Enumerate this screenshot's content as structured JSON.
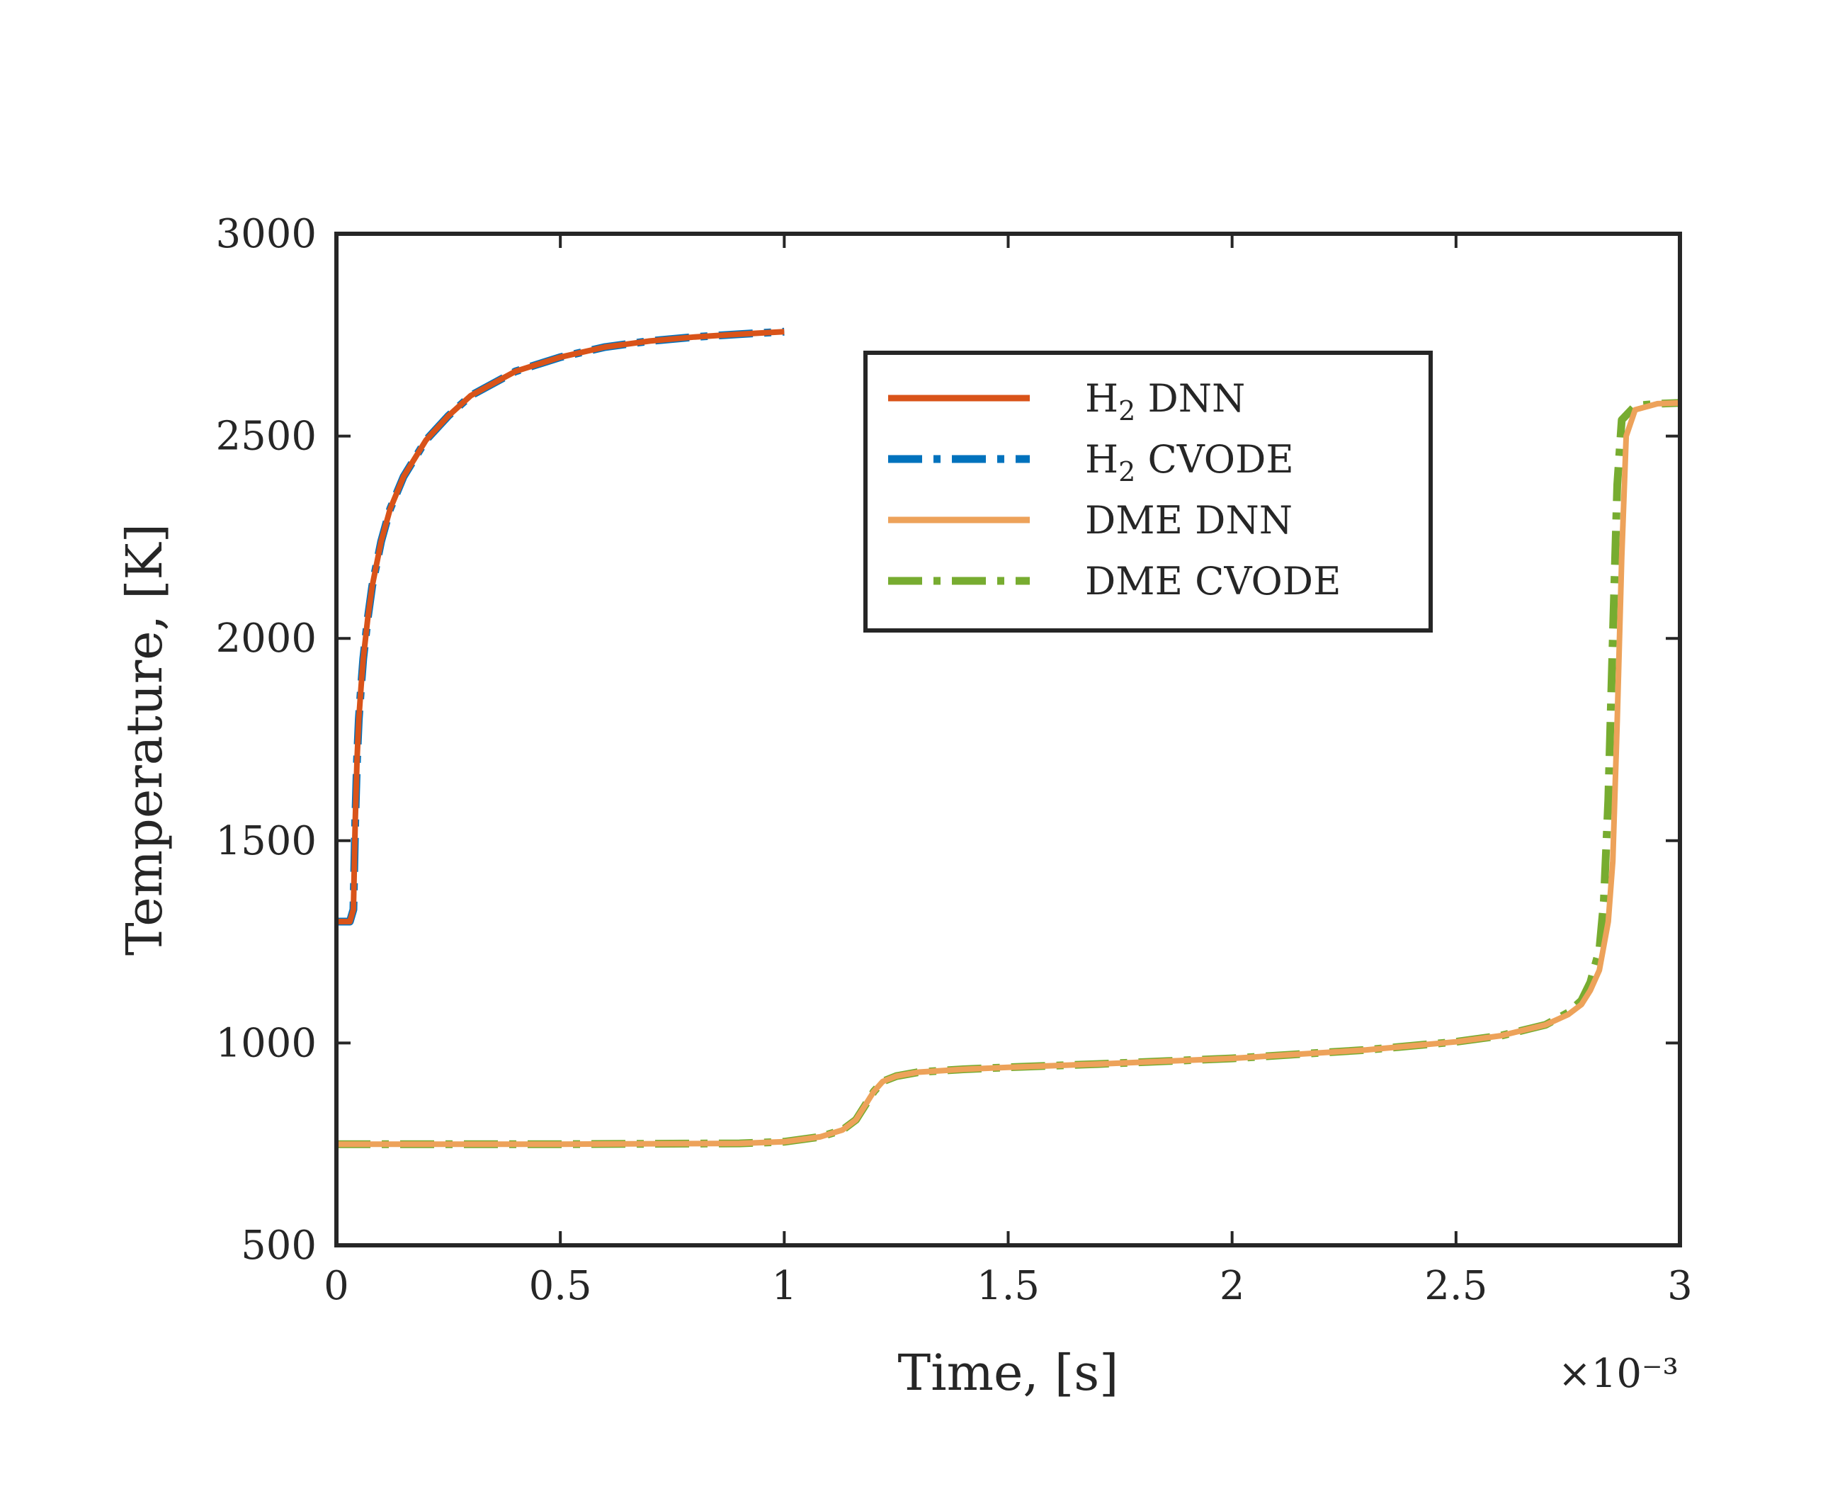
{
  "chart_data": {
    "type": "line",
    "xlabel": "Time, [s]",
    "ylabel": "Temperature, [K]",
    "xlim": [
      0,
      0.003
    ],
    "ylim": [
      500,
      3000
    ],
    "x_exponent_label": "×10⁻³",
    "xticks": [
      0,
      0.0005,
      0.001,
      0.0015,
      0.002,
      0.0025,
      0.003
    ],
    "xtick_labels": [
      "0",
      "0.5",
      "1",
      "1.5",
      "2",
      "2.5",
      "3"
    ],
    "yticks": [
      500,
      1000,
      1500,
      2000,
      2500,
      3000
    ],
    "ytick_labels": [
      "500",
      "1000",
      "1500",
      "2000",
      "2500",
      "3000"
    ],
    "grid": false,
    "legend_position": "top-right",
    "series": [
      {
        "name": "H2 DNN",
        "color": "#D95319",
        "style": "solid",
        "x": [
          0,
          3e-05,
          3.8e-05,
          4.2e-05,
          4.6e-05,
          5e-05,
          5.5e-05,
          6e-05,
          7e-05,
          8e-05,
          0.0001,
          0.00012,
          0.00015,
          0.0002,
          0.00025,
          0.0003,
          0.0004,
          0.0005,
          0.0006,
          0.0007,
          0.0008,
          0.0009,
          0.001
        ],
        "y": [
          1300,
          1300,
          1330,
          1550,
          1700,
          1800,
          1880,
          1950,
          2050,
          2130,
          2240,
          2320,
          2400,
          2490,
          2550,
          2600,
          2660,
          2695,
          2720,
          2735,
          2745,
          2752,
          2758
        ]
      },
      {
        "name": "H2 CVODE",
        "color": "#0072BD",
        "style": "dashdot",
        "x": [
          0,
          3e-05,
          3.8e-05,
          4.2e-05,
          4.6e-05,
          5e-05,
          5.5e-05,
          6e-05,
          7e-05,
          8e-05,
          0.0001,
          0.00012,
          0.00015,
          0.0002,
          0.00025,
          0.0003,
          0.0004,
          0.0005,
          0.0006,
          0.0007,
          0.0008,
          0.0009,
          0.001
        ],
        "y": [
          1300,
          1300,
          1330,
          1550,
          1700,
          1800,
          1880,
          1950,
          2050,
          2130,
          2240,
          2320,
          2400,
          2490,
          2550,
          2600,
          2660,
          2695,
          2720,
          2735,
          2745,
          2752,
          2758
        ]
      },
      {
        "name": "DME DNN",
        "color": "#EDA25A",
        "style": "solid",
        "x": [
          0,
          0.0005,
          0.0009,
          0.001,
          0.00108,
          0.00113,
          0.00116,
          0.00118,
          0.0012,
          0.00122,
          0.00125,
          0.0013,
          0.0014,
          0.0015,
          0.0017,
          0.002,
          0.0023,
          0.0025,
          0.0026,
          0.0027,
          0.00275,
          0.00278,
          0.0028,
          0.00282,
          0.00284,
          0.00285,
          0.00286,
          0.00287,
          0.00288,
          0.0029,
          0.00295,
          0.003
        ],
        "y": [
          750,
          750,
          752,
          756,
          768,
          785,
          810,
          845,
          880,
          905,
          918,
          928,
          935,
          940,
          948,
          962,
          983,
          1003,
          1018,
          1045,
          1070,
          1095,
          1130,
          1180,
          1300,
          1450,
          1800,
          2200,
          2500,
          2565,
          2580,
          2582
        ]
      },
      {
        "name": "DME CVODE",
        "color": "#77AC30",
        "style": "dashdot",
        "x": [
          0,
          0.0005,
          0.0009,
          0.001,
          0.00108,
          0.00113,
          0.00116,
          0.00118,
          0.0012,
          0.00122,
          0.00125,
          0.0013,
          0.0014,
          0.0015,
          0.0017,
          0.002,
          0.0023,
          0.0025,
          0.0026,
          0.0027,
          0.00275,
          0.00278,
          0.0028,
          0.00282,
          0.00283,
          0.00284,
          0.00285,
          0.00286,
          0.00287,
          0.0029,
          0.00295,
          0.003
        ],
        "y": [
          750,
          750,
          752,
          756,
          768,
          785,
          810,
          845,
          880,
          905,
          918,
          928,
          935,
          940,
          948,
          962,
          983,
          1003,
          1018,
          1045,
          1075,
          1105,
          1150,
          1230,
          1350,
          1600,
          2000,
          2380,
          2540,
          2575,
          2580,
          2582
        ]
      }
    ],
    "legend": [
      {
        "label": "H",
        "sub": "2",
        "rest": " DNN",
        "color": "#D95319",
        "style": "solid"
      },
      {
        "label": "H",
        "sub": "2",
        "rest": " CVODE",
        "color": "#0072BD",
        "style": "dashdot"
      },
      {
        "label": "DME DNN",
        "sub": "",
        "rest": "",
        "color": "#EDA25A",
        "style": "solid"
      },
      {
        "label": "DME CVODE",
        "sub": "",
        "rest": "",
        "color": "#77AC30",
        "style": "dashdot"
      }
    ]
  }
}
